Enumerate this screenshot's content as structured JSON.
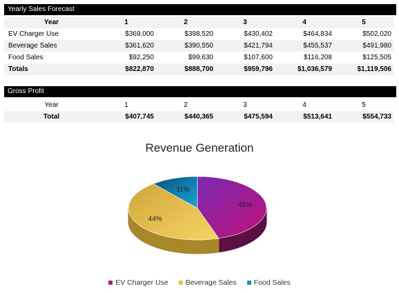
{
  "forecast": {
    "title": "Yearly Sales Forecast",
    "header": [
      "Year",
      "1",
      "2",
      "3",
      "4",
      "5"
    ],
    "rows": [
      {
        "label": "EV Charger Use",
        "values": [
          "$369,000",
          "$398,520",
          "$430,402",
          "$464,834",
          "$502,020"
        ]
      },
      {
        "label": "Beverage Sales",
        "values": [
          "$361,620",
          "$390,550",
          "$421,794",
          "$455,537",
          "$491,980"
        ]
      },
      {
        "label": "Food Sales",
        "values": [
          "$92,250",
          "$99,630",
          "$107,600",
          "$116,208",
          "$125,505"
        ]
      }
    ],
    "totals": {
      "label": "Totals",
      "values": [
        "$822,870",
        "$888,700",
        "$959,796",
        "$1,036,579",
        "$1,119,506"
      ]
    }
  },
  "gross_profit": {
    "title": "Gross Profit",
    "header": [
      "Year",
      "1",
      "2",
      "3",
      "4",
      "5"
    ],
    "total": {
      "label": "Total",
      "values": [
        "$407,745",
        "$440,365",
        "$475,594",
        "$513,641",
        "$554,733"
      ]
    }
  },
  "chart_data": {
    "type": "pie",
    "title": "Revenue Generation",
    "categories": [
      "EV Charger Use",
      "Beverage Sales",
      "Food Sales"
    ],
    "values": [
      45,
      44,
      11
    ],
    "labels": [
      "45%",
      "44%",
      "11%"
    ],
    "colors": [
      "#a0207e",
      "#e8c24a",
      "#1a8fc4"
    ],
    "legend": "bottom"
  }
}
